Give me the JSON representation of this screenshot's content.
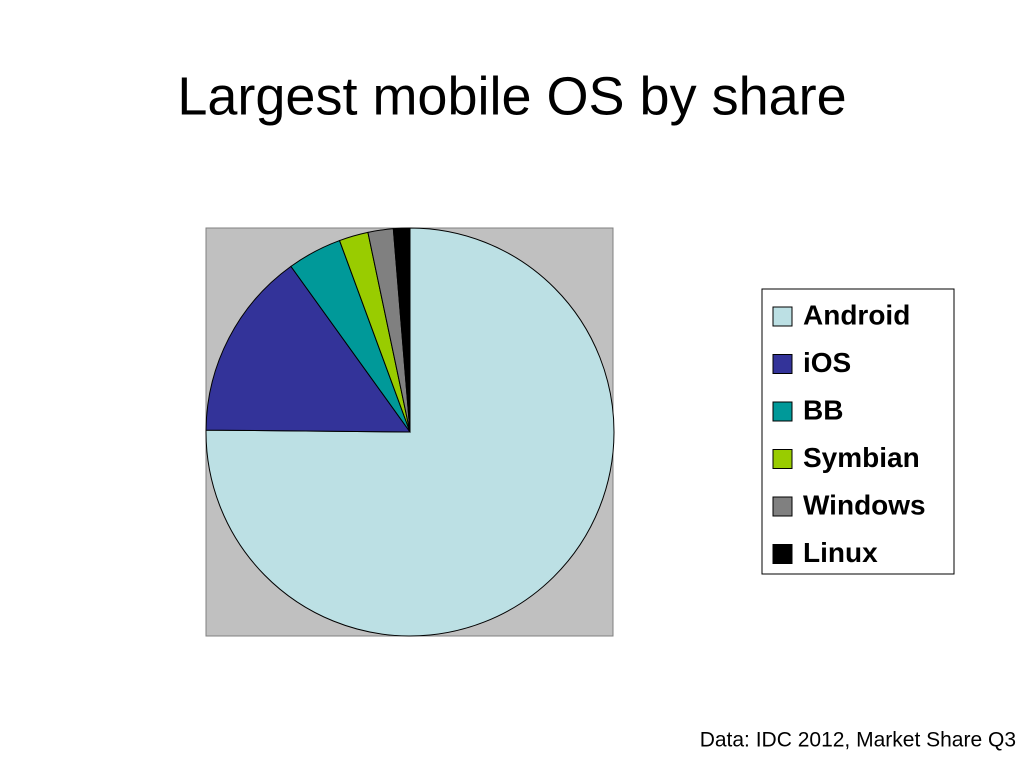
{
  "chart_data": {
    "type": "pie",
    "title": "Largest mobile OS by share",
    "categories": [
      "Android",
      "iOS",
      "BB",
      "Symbian",
      "Windows",
      "Linux"
    ],
    "values": [
      75,
      14.9,
      4.3,
      2.3,
      2.0,
      1.3
    ],
    "colors": [
      "#bce0e4",
      "#333399",
      "#009999",
      "#99cc00",
      "#808080",
      "#000000"
    ],
    "legend": "right",
    "source": "Data: IDC 2012, Market Share Q3"
  }
}
